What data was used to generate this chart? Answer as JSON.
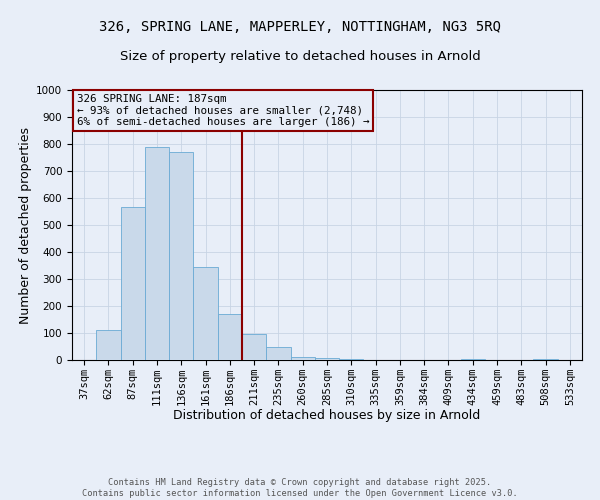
{
  "title1": "326, SPRING LANE, MAPPERLEY, NOTTINGHAM, NG3 5RQ",
  "title2": "Size of property relative to detached houses in Arnold",
  "xlabel": "Distribution of detached houses by size in Arnold",
  "ylabel": "Number of detached properties",
  "categories": [
    "37sqm",
    "62sqm",
    "87sqm",
    "111sqm",
    "136sqm",
    "161sqm",
    "186sqm",
    "211sqm",
    "235sqm",
    "260sqm",
    "285sqm",
    "310sqm",
    "335sqm",
    "359sqm",
    "384sqm",
    "409sqm",
    "434sqm",
    "459sqm",
    "483sqm",
    "508sqm",
    "533sqm"
  ],
  "values": [
    0,
    110,
    565,
    790,
    770,
    345,
    170,
    95,
    50,
    12,
    8,
    5,
    0,
    0,
    0,
    0,
    5,
    0,
    0,
    5,
    0
  ],
  "bar_color": "#c9d9ea",
  "bar_edge_color": "#6aaad4",
  "vline_index": 6,
  "vline_color": "#8b0000",
  "annotation_line1": "326 SPRING LANE: 187sqm",
  "annotation_line2": "← 93% of detached houses are smaller (2,748)",
  "annotation_line3": "6% of semi-detached houses are larger (186) →",
  "annotation_box_color": "#8b0000",
  "ylim": [
    0,
    1000
  ],
  "yticks": [
    0,
    100,
    200,
    300,
    400,
    500,
    600,
    700,
    800,
    900,
    1000
  ],
  "grid_color": "#c8d4e4",
  "background_color": "#e8eef8",
  "footer_text": "Contains HM Land Registry data © Crown copyright and database right 2025.\nContains public sector information licensed under the Open Government Licence v3.0.",
  "title_fontsize": 10,
  "subtitle_fontsize": 9.5,
  "axis_label_fontsize": 9,
  "tick_fontsize": 7.5,
  "footer_fontsize": 6.2
}
